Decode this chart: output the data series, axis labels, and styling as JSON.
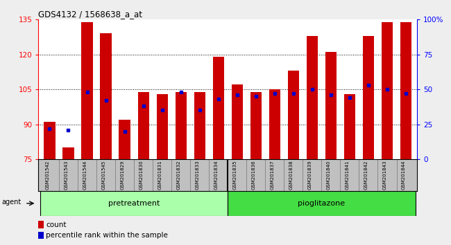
{
  "title": "GDS4132 / 1568638_a_at",
  "samples": [
    "GSM201542",
    "GSM201543",
    "GSM201544",
    "GSM201545",
    "GSM201829",
    "GSM201830",
    "GSM201831",
    "GSM201832",
    "GSM201833",
    "GSM201834",
    "GSM201835",
    "GSM201836",
    "GSM201837",
    "GSM201838",
    "GSM201839",
    "GSM201840",
    "GSM201841",
    "GSM201842",
    "GSM201843",
    "GSM201844"
  ],
  "count_values": [
    91,
    80,
    134,
    129,
    92,
    104,
    103,
    104,
    104,
    119,
    107,
    104,
    105,
    113,
    128,
    121,
    103,
    128,
    134,
    134
  ],
  "percentile_values": [
    22,
    21,
    48,
    42,
    20,
    38,
    35,
    48,
    35,
    43,
    46,
    45,
    47,
    47,
    50,
    46,
    44,
    53,
    50,
    47
  ],
  "ylim_left": [
    75,
    135
  ],
  "ylim_right": [
    0,
    100
  ],
  "yticks_left": [
    75,
    90,
    105,
    120,
    135
  ],
  "yticks_right": [
    0,
    25,
    50,
    75,
    100
  ],
  "ytick_labels_left": [
    "75",
    "90",
    "105",
    "120",
    "135"
  ],
  "ytick_labels_right": [
    "0",
    "25",
    "50",
    "75",
    "100%"
  ],
  "bar_color": "#CC0000",
  "dot_color": "#0000CC",
  "tick_area_bg": "#C0C0C0",
  "plot_bg": "#FFFFFF",
  "fig_bg": "#EEEEEE",
  "grid_color": "#000000",
  "legend_count_label": "count",
  "legend_pct_label": "percentile rank within the sample",
  "agent_label": "agent",
  "pretreatment_label": "pretreatment",
  "pioglitazone_label": "pioglitazone",
  "pretreatment_color": "#AAFFAA",
  "pioglitazone_color": "#44DD44",
  "n_pretreatment": 10,
  "n_pioglitazone": 10
}
